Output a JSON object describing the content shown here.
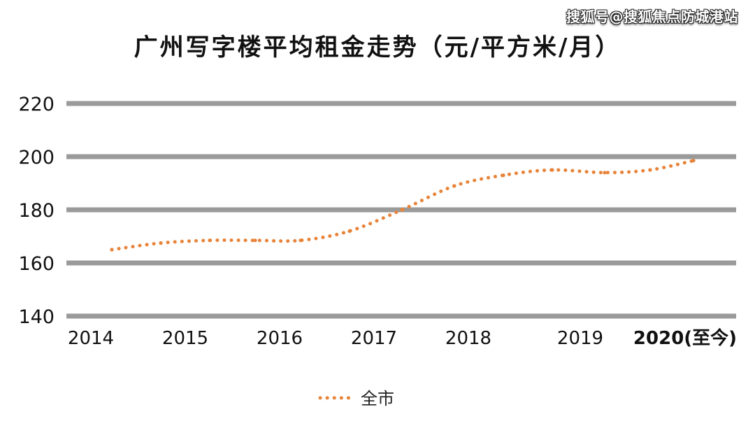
{
  "watermark": "搜狐号@搜狐焦点防城港站",
  "chart_data": {
    "type": "line",
    "title": "广州写字楼平均租金走势（元/平方米/月）",
    "y_ticks": [
      220,
      200,
      180,
      160,
      140
    ],
    "ylim": [
      140,
      220
    ],
    "x_tick_labels": [
      "2014",
      "2015",
      "2016",
      "2017",
      "2018",
      "2019",
      "2020(至今)"
    ],
    "grid": true,
    "legend_position": "bottom-center",
    "series": [
      {
        "name": "全市",
        "color": "#E8843A",
        "style": "dotted",
        "x": [
          "2014",
          "2014.5",
          "2015",
          "2015.5",
          "2016",
          "2016.5",
          "2017",
          "2017.5",
          "2018",
          "2018.5",
          "2019",
          "2019.5",
          "2020(至今)"
        ],
        "values": [
          165,
          167.5,
          168.5,
          168.5,
          168.5,
          172,
          180,
          189,
          193,
          195,
          194,
          195,
          198.5
        ]
      }
    ]
  }
}
